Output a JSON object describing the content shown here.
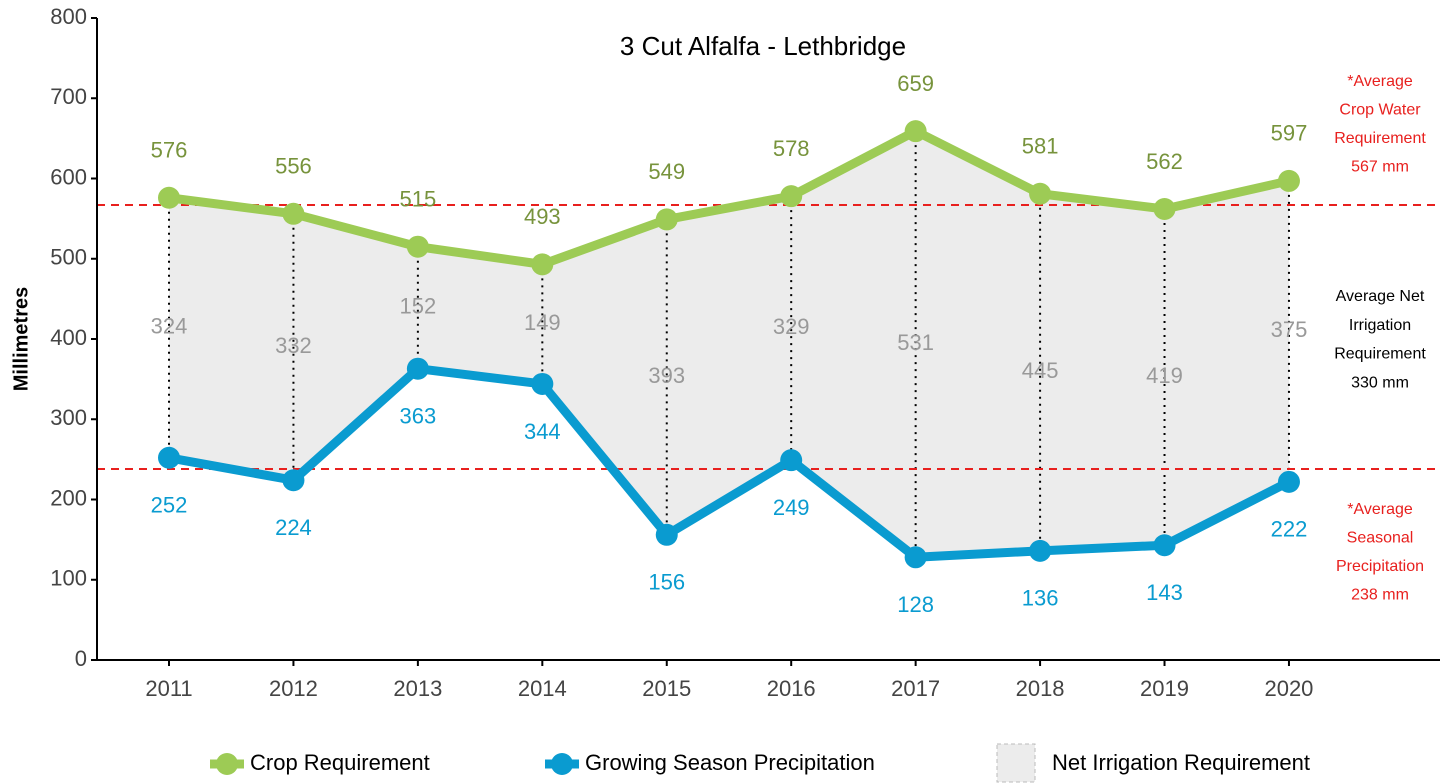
{
  "chart_data": {
    "type": "line",
    "title": "3 Cut Alfalfa -  Lethbridge",
    "y_label": "Millimetres",
    "categories": [
      "2011",
      "2012",
      "2013",
      "2014",
      "2015",
      "2016",
      "2017",
      "2018",
      "2019",
      "2020"
    ],
    "series": [
      {
        "name": "Crop Requirement",
        "color": "#9dcb55",
        "label_color": "#77933c",
        "values": [
          576,
          556,
          515,
          493,
          549,
          578,
          659,
          581,
          562,
          597
        ]
      },
      {
        "name": "Growing Season Precipitation",
        "color": "#0a9bd0",
        "label_color": "#0a9bd0",
        "values": [
          252,
          224,
          363,
          344,
          156,
          249,
          128,
          136,
          143,
          222
        ]
      },
      {
        "name": "Net Irrigation Requirement",
        "color": "#ececec",
        "label_color": "#999999",
        "values": [
          324,
          332,
          152,
          149,
          393,
          329,
          531,
          445,
          419,
          375
        ]
      }
    ],
    "reference_lines": [
      {
        "value": 567,
        "color": "#e8201e",
        "annotation": [
          "*Average",
          "Crop Water",
          "Requirement",
          "567 mm"
        ]
      },
      {
        "value": 238,
        "color": "#e8201e",
        "annotation": [
          "*Average",
          "Seasonal",
          "Precipitation",
          "238 mm"
        ]
      }
    ],
    "net_annotation": [
      "Average Net",
      "Irrigation",
      "Requirement",
      "330 mm"
    ],
    "ylim": [
      0,
      800
    ],
    "yticks": [
      0,
      100,
      200,
      300,
      400,
      500,
      600,
      700,
      800
    ]
  }
}
